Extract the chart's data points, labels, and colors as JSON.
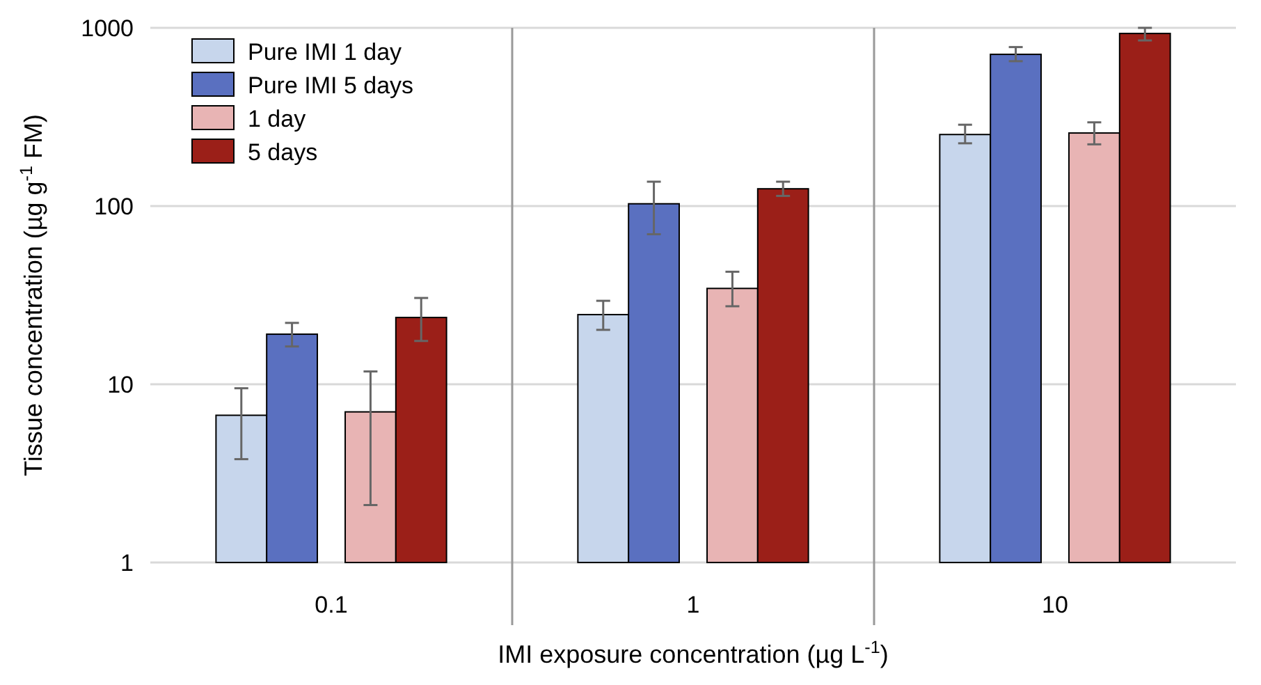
{
  "chart_data": {
    "type": "bar",
    "xlabel": "IMI exposure concentration (µg L$^{-1}$)",
    "ylabel": "Tissue concentration (µg g$^{-1}$ FM)",
    "categories": [
      "0.1",
      "1",
      "10"
    ],
    "log": "y",
    "ylim": [
      1,
      1000
    ],
    "yticks": [
      1,
      10,
      100,
      1000
    ],
    "grid": "y",
    "legend": "top left",
    "series": [
      {
        "name": "Pure IMI 1 day",
        "color": "#c7d6ec",
        "values": [
          6.7,
          24.6,
          252
        ],
        "errors": [
          [
            3.8,
            9.5
          ],
          [
            20.2,
            29.4
          ],
          [
            225,
            286
          ]
        ]
      },
      {
        "name": "Pure IMI 5 days",
        "color": "#5a70c0",
        "values": [
          19.1,
          103,
          710
        ],
        "errors": [
          [
            16.3,
            22.1
          ],
          [
            69.5,
            137
          ],
          [
            650,
            780
          ]
        ]
      },
      {
        "name": "1 day",
        "color": "#e8b4b4",
        "values": [
          7.0,
          34.5,
          257
        ],
        "errors": [
          [
            2.1,
            11.8
          ],
          [
            27.4,
            42.8
          ],
          [
            222,
            295
          ]
        ]
      },
      {
        "name": "5 days",
        "color": "#9b1f18",
        "values": [
          23.7,
          125,
          930
        ],
        "errors": [
          [
            17.5,
            30.5
          ],
          [
            114,
            137
          ],
          [
            850,
            1000
          ]
        ]
      }
    ]
  }
}
